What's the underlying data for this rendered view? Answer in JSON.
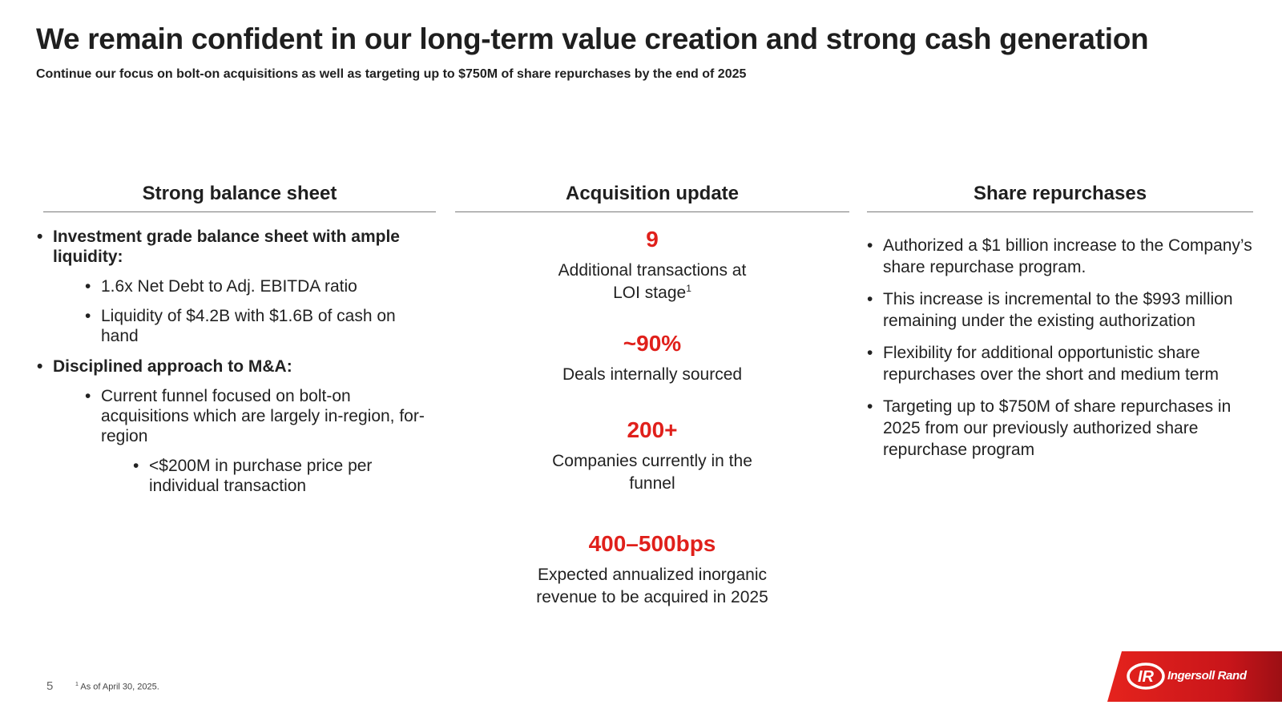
{
  "header": {
    "title": "We remain confident in our long-term value creation and strong cash generation",
    "subtitle": "Continue our focus on bolt-on acquisitions as well as targeting up to $750M of share repurchases by the end of 2025"
  },
  "balance_sheet": {
    "heading": "Strong balance sheet",
    "point1": "Investment grade balance sheet with ample liquidity:",
    "point1_subs": [
      "1.6x Net Debt to Adj. EBITDA ratio",
      "Liquidity of $4.2B with $1.6B of cash on hand"
    ],
    "point2": "Disciplined approach to M&A:",
    "point2_sub": "Current funnel focused on bolt-on acquisitions which are largely in-region, for-region",
    "point2_subsub": "<$200M in purchase price per individual transaction"
  },
  "acquisition": {
    "heading": "Acquisition update",
    "stats": [
      {
        "value": "9",
        "desc": "Additional transactions at LOI stage",
        "footnote_marker": "1"
      },
      {
        "value": "~90%",
        "desc": "Deals internally sourced"
      },
      {
        "value": "200+",
        "desc": "Companies currently in the funnel"
      },
      {
        "value": "400–500bps",
        "desc": "Expected annualized inorganic revenue to be acquired in 2025"
      }
    ]
  },
  "share_repurchases": {
    "heading": "Share repurchases",
    "items": [
      "Authorized a $1 billion increase to the Company’s share repurchase program.",
      "This increase is incremental to the $993 million remaining under the existing authorization",
      "Flexibility for additional opportunistic share repurchases over the short and medium term",
      "Targeting up to $750M of share repurchases in 2025 from our previously authorized share repurchase program"
    ]
  },
  "footer": {
    "page_number": "5",
    "footnote_marker": "1",
    "footnote": "As of April 30, 2025.",
    "logo_text": "Ingersoll Rand",
    "brand_color": "#e0201b"
  }
}
